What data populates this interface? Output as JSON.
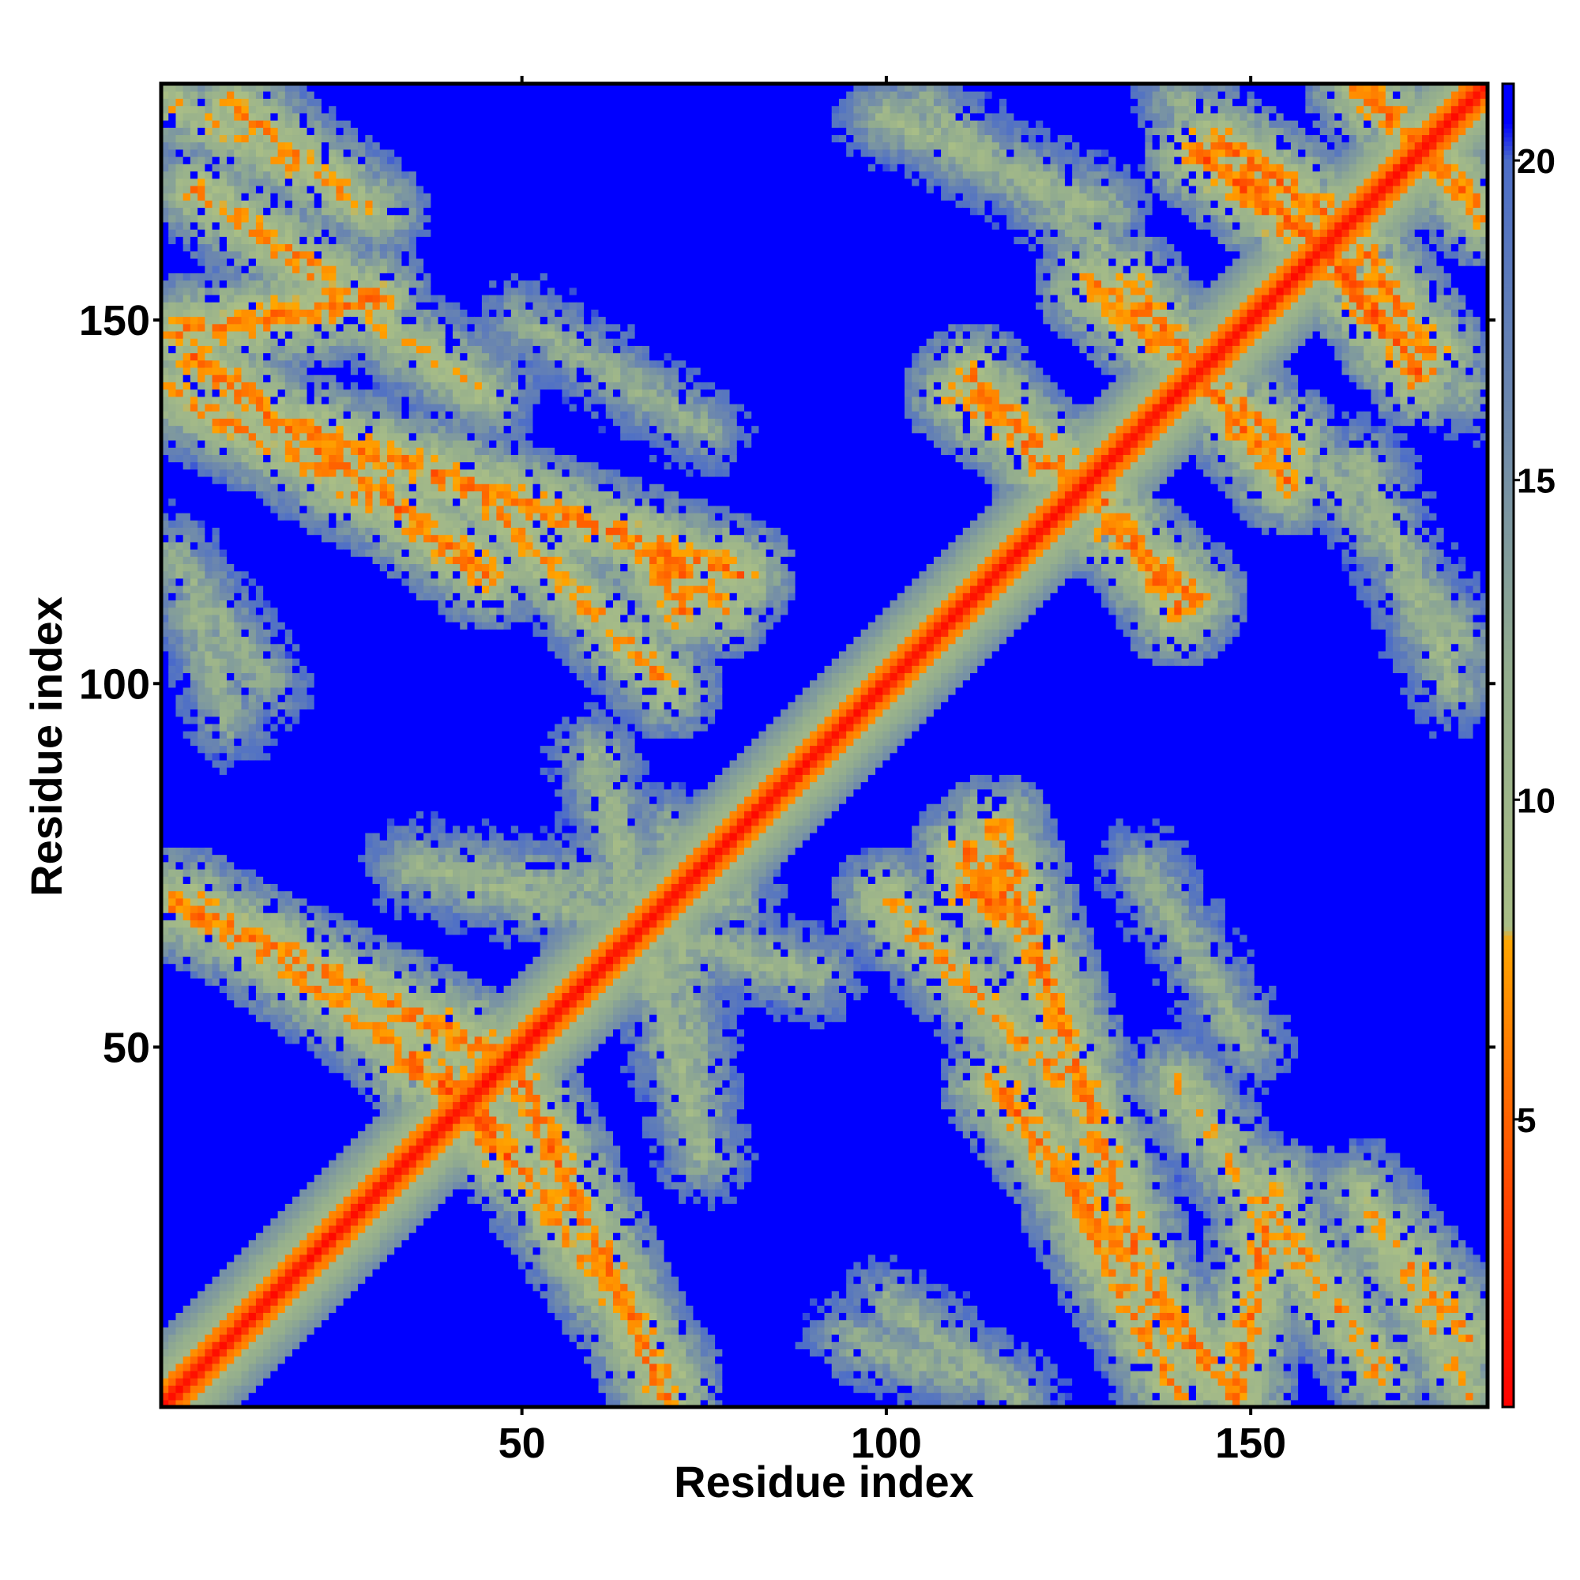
{
  "chart_data": {
    "type": "heatmap",
    "title": "",
    "xlabel": "Residue index",
    "ylabel": "Residue index",
    "n_residues": 182,
    "xlim": [
      1,
      182
    ],
    "ylim": [
      1,
      182
    ],
    "x_ticks": [
      50,
      100,
      150
    ],
    "y_ticks": [
      50,
      100,
      150
    ],
    "x_tick_labels": [
      "50",
      "100",
      "150"
    ],
    "y_tick_labels": [
      "50",
      "100",
      "150"
    ],
    "colorbar": {
      "range": [
        0.5,
        21.2
      ],
      "ticks": [
        5,
        10,
        15,
        20
      ],
      "tick_labels": [
        "5",
        "10",
        "15",
        "20"
      ],
      "stops": [
        {
          "value": 0.5,
          "color": "#ff0000"
        },
        {
          "value": 4.0,
          "color": "#ff4a00"
        },
        {
          "value": 7.8,
          "color": "#ffa500"
        },
        {
          "value": 8.0,
          "color": "#a9be86"
        },
        {
          "value": 12.0,
          "color": "#93ad8e"
        },
        {
          "value": 16.0,
          "color": "#6d88ad"
        },
        {
          "value": 20.0,
          "color": "#4d6ec8"
        },
        {
          "value": 20.6,
          "color": "#0000ff"
        },
        {
          "value": 21.2,
          "color": "#0000ff"
        }
      ]
    },
    "background_value": 21,
    "diagonal_bands": [
      {
        "description": "main diagonal",
        "from": [
          1,
          1
        ],
        "to": [
          182,
          182
        ]
      }
    ],
    "contact_bands": [
      {
        "from": [
          2,
          180
        ],
        "to": [
          30,
          165
        ],
        "d_min": 8
      },
      {
        "from": [
          2,
          148
        ],
        "to": [
          30,
          153
        ],
        "d_min": 6
      },
      {
        "from": [
          2,
          140
        ],
        "to": [
          30,
          125
        ],
        "d_min": 7
      },
      {
        "from": [
          20,
          135
        ],
        "to": [
          80,
          115
        ],
        "d_min": 6
      },
      {
        "from": [
          2,
          118
        ],
        "to": [
          15,
          100
        ],
        "d_min": 11
      },
      {
        "from": [
          50,
          150
        ],
        "to": [
          75,
          135
        ],
        "d_min": 11
      },
      {
        "from": [
          70,
          117
        ],
        "to": [
          77,
          111
        ],
        "d_min": 6
      },
      {
        "from": [
          2,
          70
        ],
        "to": [
          45,
          50
        ],
        "d_min": 6
      },
      {
        "from": [
          35,
          48
        ],
        "to": [
          45,
          40
        ],
        "d_min": 5
      },
      {
        "from": [
          45,
          40
        ],
        "to": [
          70,
          5
        ],
        "d_min": 7
      },
      {
        "from": [
          35,
          75
        ],
        "to": [
          80,
          70
        ],
        "d_min": 11
      },
      {
        "from": [
          60,
          90
        ],
        "to": [
          75,
          35
        ],
        "d_min": 10
      },
      {
        "from": [
          100,
          70
        ],
        "to": [
          125,
          45
        ],
        "d_min": 7
      },
      {
        "from": [
          115,
          45
        ],
        "to": [
          145,
          5
        ],
        "d_min": 6
      },
      {
        "from": [
          140,
          45
        ],
        "to": [
          160,
          15
        ],
        "d_min": 8
      },
      {
        "from": [
          155,
          25
        ],
        "to": [
          168,
          5
        ],
        "d_min": 7
      },
      {
        "from": [
          168,
          25
        ],
        "to": [
          180,
          10
        ],
        "d_min": 7
      },
      {
        "from": [
          95,
          10
        ],
        "to": [
          110,
          5
        ],
        "d_min": 11
      },
      {
        "from": [
          112,
          142
        ],
        "to": [
          122,
          130
        ],
        "d_min": 6
      },
      {
        "from": [
          133,
          155
        ],
        "to": [
          143,
          142
        ],
        "d_min": 6
      },
      {
        "from": [
          145,
          140
        ],
        "to": [
          155,
          128
        ],
        "d_min": 6
      },
      {
        "from": [
          130,
          125
        ],
        "to": [
          140,
          110
        ],
        "d_min": 6
      },
      {
        "from": [
          143,
          173
        ],
        "to": [
          160,
          160
        ],
        "d_min": 5
      },
      {
        "from": [
          165,
          160
        ],
        "to": [
          175,
          145
        ],
        "d_min": 6
      },
      {
        "from": [
          165,
          182
        ],
        "to": [
          182,
          165
        ],
        "d_min": 6
      },
      {
        "from": [
          100,
          178
        ],
        "to": [
          130,
          165
        ],
        "d_min": 10
      },
      {
        "from": [
          155,
          160
        ],
        "to": [
          180,
          140
        ],
        "d_min": 11
      },
      {
        "from": [
          160,
          130
        ],
        "to": [
          180,
          105
        ],
        "d_min": 11
      },
      {
        "from": [
          110,
          72
        ],
        "to": [
          118,
          68
        ],
        "d_min": 6
      }
    ]
  }
}
